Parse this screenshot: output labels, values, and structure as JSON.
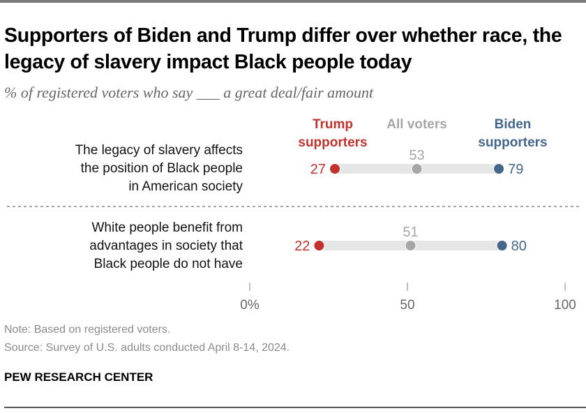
{
  "title": "Supporters of Biden and Trump differ over whether race, the legacy of slavery impact Black people today",
  "subtitle": "% of registered voters who say ___ a great deal/fair amount",
  "note": "Note: Based on registered voters.",
  "source": "Source: Survey of U.S. adults conducted April 8-14, 2024.",
  "brand": "PEW RESEARCH CENTER",
  "colors": {
    "trump": "#c0322b",
    "all": "#a6a6a6",
    "biden": "#44668a",
    "track": "#e6e6e6"
  },
  "chart_data": {
    "type": "dot",
    "title": "Supporters of Biden and Trump differ over whether race, the legacy of slavery impact Black people today",
    "subtitle": "% of registered voters who say ___ a great deal/fair amount",
    "legend": [
      "Trump supporters",
      "All voters",
      "Biden supporters"
    ],
    "legend_placement": "top",
    "categories": [
      "The legacy of slavery affects the position of Black people in American society",
      "White people benefit from advantages in society that Black people do not have"
    ],
    "category_lines": [
      [
        "The legacy of slavery affects",
        "the position of Black people",
        "in American society"
      ],
      [
        "White people benefit from",
        "advantages in society that",
        "Black people do not have"
      ]
    ],
    "series": [
      {
        "name": "Trump supporters",
        "label_lines": [
          "Trump",
          "supporters"
        ],
        "values": [
          27,
          22
        ]
      },
      {
        "name": "All voters",
        "label_lines": [
          "All voters"
        ],
        "values": [
          53,
          51
        ]
      },
      {
        "name": "Biden supporters",
        "label_lines": [
          "Biden",
          "supporters"
        ],
        "values": [
          79,
          80
        ]
      }
    ],
    "xlim": [
      0,
      100
    ],
    "xticks": [
      0,
      50,
      100
    ],
    "xtick_labels": [
      "0%",
      "50",
      "100"
    ],
    "grid": false
  }
}
